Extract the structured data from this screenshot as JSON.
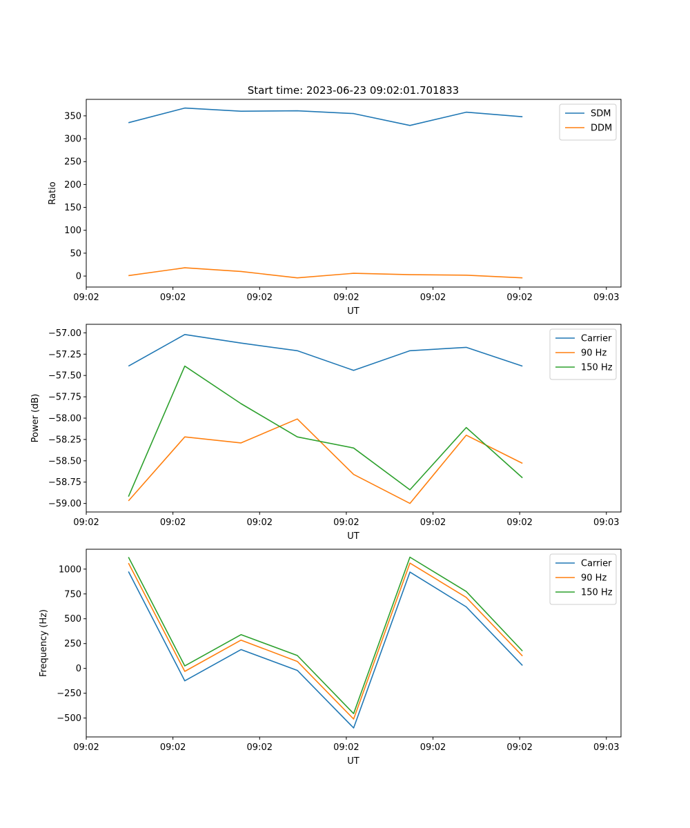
{
  "figure_title": "Start time: 2023-06-23 09:02:01.701833",
  "chart_data": [
    {
      "type": "line",
      "xlabel": "UT",
      "ylabel": "Ratio",
      "xlim": [
        0,
        9.5
      ],
      "ylim": [
        -24,
        386
      ],
      "x": [
        0.75,
        1.75,
        2.75,
        3.75,
        4.75,
        5.75,
        6.75,
        7.75
      ],
      "x_ticks": [
        0,
        1.54,
        3.08,
        4.62,
        6.16,
        7.7,
        9.24
      ],
      "x_tick_labels": [
        "09:02",
        "09:02",
        "09:02",
        "09:02",
        "09:02",
        "09:02",
        "09:03"
      ],
      "y_ticks": [
        0,
        50,
        100,
        150,
        200,
        250,
        300,
        350
      ],
      "y_tick_labels": [
        "0",
        "50",
        "100",
        "150",
        "200",
        "250",
        "300",
        "350"
      ],
      "legend_position": "top-right",
      "series": [
        {
          "name": "SDM",
          "color": "#1f77b4",
          "values": [
            335,
            367,
            360,
            361,
            355,
            329,
            358,
            348
          ]
        },
        {
          "name": "DDM",
          "color": "#ff7f0e",
          "values": [
            1,
            18,
            10,
            -4,
            6,
            3,
            2,
            -4
          ]
        }
      ]
    },
    {
      "type": "line",
      "xlabel": "UT",
      "ylabel": "Power (dB)",
      "xlim": [
        0,
        9.5
      ],
      "ylim": [
        -59.1,
        -56.9
      ],
      "x": [
        0.75,
        1.75,
        2.75,
        3.75,
        4.75,
        5.75,
        6.75,
        7.75
      ],
      "x_ticks": [
        0,
        1.54,
        3.08,
        4.62,
        6.16,
        7.7,
        9.24
      ],
      "x_tick_labels": [
        "09:02",
        "09:02",
        "09:02",
        "09:02",
        "09:02",
        "09:02",
        "09:03"
      ],
      "y_ticks": [
        -59.0,
        -58.75,
        -58.5,
        -58.25,
        -58.0,
        -57.75,
        -57.5,
        -57.25,
        -57.0
      ],
      "y_tick_labels": [
        "−59.00",
        "−58.75",
        "−58.50",
        "−58.25",
        "−58.00",
        "−57.75",
        "−57.50",
        "−57.25",
        "−57.00"
      ],
      "legend_position": "top-right",
      "series": [
        {
          "name": "Carrier",
          "color": "#1f77b4",
          "values": [
            -57.39,
            -57.02,
            -57.12,
            -57.21,
            -57.44,
            -57.21,
            -57.17,
            -57.39
          ]
        },
        {
          "name": "90 Hz",
          "color": "#ff7f0e",
          "values": [
            -58.97,
            -58.22,
            -58.29,
            -58.01,
            -58.66,
            -59.0,
            -58.2,
            -58.53
          ]
        },
        {
          "name": "150 Hz",
          "color": "#2ca02c",
          "values": [
            -58.92,
            -57.39,
            -57.83,
            -58.22,
            -58.35,
            -58.84,
            -58.11,
            -58.7
          ]
        }
      ]
    },
    {
      "type": "line",
      "xlabel": "UT",
      "ylabel": "Frequency (Hz)",
      "xlim": [
        0,
        9.5
      ],
      "ylim": [
        -690,
        1200
      ],
      "x": [
        0.75,
        1.75,
        2.75,
        3.75,
        4.75,
        5.75,
        6.75,
        7.75
      ],
      "x_ticks": [
        0,
        1.54,
        3.08,
        4.62,
        6.16,
        7.7,
        9.24
      ],
      "x_tick_labels": [
        "09:02",
        "09:02",
        "09:02",
        "09:02",
        "09:02",
        "09:02",
        "09:03"
      ],
      "y_ticks": [
        -500,
        -250,
        0,
        250,
        500,
        750,
        1000
      ],
      "y_tick_labels": [
        "−500",
        "−250",
        "0",
        "250",
        "500",
        "750",
        "1000"
      ],
      "legend_position": "top-right",
      "series": [
        {
          "name": "Carrier",
          "color": "#1f77b4",
          "values": [
            975,
            -125,
            190,
            -20,
            -600,
            970,
            620,
            30
          ]
        },
        {
          "name": "90 Hz",
          "color": "#ff7f0e",
          "values": [
            1060,
            -30,
            285,
            70,
            -510,
            1060,
            715,
            125
          ]
        },
        {
          "name": "150 Hz",
          "color": "#2ca02c",
          "values": [
            1120,
            25,
            340,
            130,
            -455,
            1120,
            775,
            175
          ]
        }
      ]
    }
  ]
}
